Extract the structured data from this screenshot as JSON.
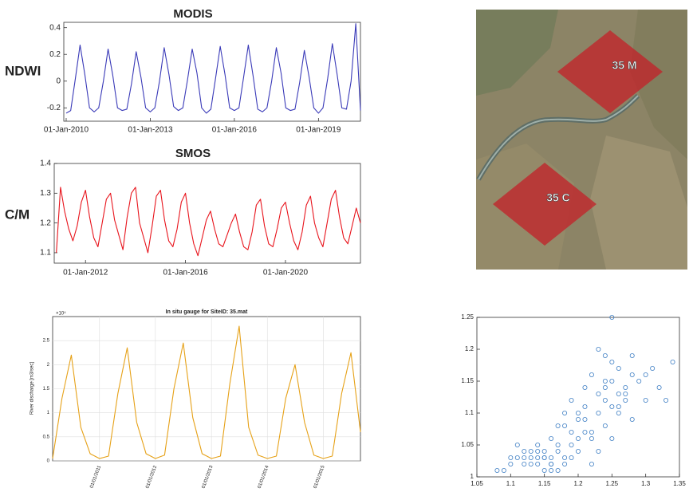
{
  "chart_data": [
    {
      "type": "line",
      "title": "MODIS",
      "ylabel": "NDWI",
      "color": "#3a3ab8",
      "x": [
        "2010-01-01",
        "2010-03-01",
        "2010-05-01",
        "2010-07-01",
        "2010-09-01",
        "2010-11-01",
        "2011-01-01",
        "2011-03-01",
        "2011-05-01",
        "2011-07-01",
        "2011-09-01",
        "2011-11-01",
        "2012-01-01",
        "2012-03-01",
        "2012-05-01",
        "2012-07-01",
        "2012-09-01",
        "2012-11-01",
        "2013-01-01",
        "2013-03-01",
        "2013-05-01",
        "2013-07-01",
        "2013-09-01",
        "2013-11-01",
        "2014-01-01",
        "2014-03-01",
        "2014-05-01",
        "2014-07-01",
        "2014-09-01",
        "2014-11-01",
        "2015-01-01",
        "2015-03-01",
        "2015-05-01",
        "2015-07-01",
        "2015-09-01",
        "2015-11-01",
        "2016-01-01",
        "2016-03-01",
        "2016-05-01",
        "2016-07-01",
        "2016-09-01",
        "2016-11-01",
        "2017-01-01",
        "2017-03-01",
        "2017-05-01",
        "2017-07-01",
        "2017-09-01",
        "2017-11-01",
        "2018-01-01",
        "2018-03-01",
        "2018-05-01",
        "2018-07-01",
        "2018-09-01",
        "2018-11-01",
        "2019-01-01",
        "2019-03-01",
        "2019-05-01",
        "2019-07-01",
        "2019-09-01",
        "2019-11-01",
        "2020-01-01",
        "2020-03-01",
        "2020-05-01",
        "2020-07-01"
      ],
      "values": [
        -0.24,
        -0.22,
        0.02,
        0.27,
        0.05,
        -0.2,
        -0.23,
        -0.2,
        0.0,
        0.24,
        0.04,
        -0.2,
        -0.22,
        -0.21,
        -0.02,
        0.22,
        0.03,
        -0.2,
        -0.23,
        -0.2,
        0.0,
        0.25,
        0.05,
        -0.19,
        -0.22,
        -0.2,
        0.01,
        0.24,
        0.06,
        -0.2,
        -0.24,
        -0.21,
        0.02,
        0.26,
        0.05,
        -0.2,
        -0.22,
        -0.2,
        0.03,
        0.27,
        0.04,
        -0.21,
        -0.23,
        -0.2,
        0.0,
        0.25,
        0.06,
        -0.2,
        -0.22,
        -0.21,
        -0.01,
        0.23,
        0.03,
        -0.2,
        -0.24,
        -0.2,
        0.02,
        0.28,
        0.05,
        -0.2,
        -0.21,
        0.0,
        0.43,
        -0.22
      ],
      "xlim": [
        "2009-12-01",
        "2020-07-01"
      ],
      "ylim": [
        -0.3,
        0.44
      ],
      "xticks": [
        {
          "value": "2010-01-01",
          "label": "01-Jan-2010"
        },
        {
          "value": "2013-01-01",
          "label": "01-Jan-2013"
        },
        {
          "value": "2016-01-01",
          "label": "01-Jan-2016"
        },
        {
          "value": "2019-01-01",
          "label": "01-Jan-2019"
        }
      ],
      "yticks": [
        -0.2,
        0,
        0.2,
        0.4
      ],
      "grid": false
    },
    {
      "type": "line",
      "title": "SMOS",
      "ylabel": "C/M",
      "color": "#e8141c",
      "x": [
        "2010-11-01",
        "2011-01-01",
        "2011-03-01",
        "2011-05-01",
        "2011-07-01",
        "2011-09-01",
        "2011-11-01",
        "2012-01-01",
        "2012-03-01",
        "2012-05-01",
        "2012-07-01",
        "2012-09-01",
        "2012-11-01",
        "2013-01-01",
        "2013-03-01",
        "2013-05-01",
        "2013-07-01",
        "2013-09-01",
        "2013-11-01",
        "2014-01-01",
        "2014-03-01",
        "2014-05-01",
        "2014-07-01",
        "2014-09-01",
        "2014-11-01",
        "2015-01-01",
        "2015-03-01",
        "2015-05-01",
        "2015-07-01",
        "2015-09-01",
        "2015-11-01",
        "2016-01-01",
        "2016-03-01",
        "2016-05-01",
        "2016-07-01",
        "2016-09-01",
        "2016-11-01",
        "2017-01-01",
        "2017-03-01",
        "2017-05-01",
        "2017-07-01",
        "2017-09-01",
        "2017-11-01",
        "2018-01-01",
        "2018-03-01",
        "2018-05-01",
        "2018-07-01",
        "2018-09-01",
        "2018-11-01",
        "2019-01-01",
        "2019-03-01",
        "2019-05-01",
        "2019-07-01",
        "2019-09-01",
        "2019-11-01",
        "2020-01-01",
        "2020-03-01",
        "2020-05-01",
        "2020-07-01",
        "2020-09-01",
        "2020-11-01",
        "2021-01-01",
        "2021-03-01",
        "2021-05-01",
        "2021-07-01",
        "2021-09-01",
        "2021-11-01",
        "2022-01-01",
        "2022-03-01",
        "2022-05-01",
        "2022-07-01",
        "2022-09-01",
        "2022-11-01",
        "2023-01-01"
      ],
      "values": [
        1.1,
        1.32,
        1.24,
        1.18,
        1.14,
        1.19,
        1.27,
        1.31,
        1.22,
        1.15,
        1.12,
        1.2,
        1.28,
        1.3,
        1.21,
        1.16,
        1.11,
        1.22,
        1.3,
        1.32,
        1.2,
        1.15,
        1.1,
        1.19,
        1.29,
        1.31,
        1.21,
        1.14,
        1.12,
        1.18,
        1.27,
        1.3,
        1.2,
        1.13,
        1.09,
        1.15,
        1.21,
        1.24,
        1.18,
        1.13,
        1.12,
        1.16,
        1.2,
        1.23,
        1.17,
        1.12,
        1.11,
        1.17,
        1.26,
        1.28,
        1.19,
        1.13,
        1.12,
        1.18,
        1.25,
        1.27,
        1.2,
        1.14,
        1.11,
        1.17,
        1.26,
        1.29,
        1.2,
        1.15,
        1.12,
        1.2,
        1.28,
        1.31,
        1.22,
        1.15,
        1.13,
        1.19,
        1.25,
        1.2
      ],
      "xlim": [
        "2010-10-01",
        "2023-01-01"
      ],
      "ylim": [
        1.065,
        1.4
      ],
      "xticks": [
        {
          "value": "2012-01-01",
          "label": "01-Jan-2012"
        },
        {
          "value": "2016-01-01",
          "label": "01-Jan-2016"
        },
        {
          "value": "2020-01-01",
          "label": "01-Jan-2020"
        }
      ],
      "yticks": [
        1.1,
        1.2,
        1.3,
        1.4
      ],
      "grid": false
    },
    {
      "type": "line",
      "title": "In situ gauge for SiteID: 35.mat",
      "ylabel": "River discharge [m3/sec]",
      "y_multiplier": "×10⁴",
      "color": "#e6a117",
      "x": [
        "2010-03-01",
        "2010-05-01",
        "2010-07-01",
        "2010-09-01",
        "2010-11-01",
        "2011-01-01",
        "2011-03-01",
        "2011-05-01",
        "2011-07-01",
        "2011-09-01",
        "2011-11-01",
        "2012-01-01",
        "2012-03-01",
        "2012-05-01",
        "2012-07-01",
        "2012-09-01",
        "2012-11-01",
        "2013-01-01",
        "2013-03-01",
        "2013-05-01",
        "2013-07-01",
        "2013-09-01",
        "2013-11-01",
        "2014-01-01",
        "2014-03-01",
        "2014-05-01",
        "2014-07-01",
        "2014-09-01",
        "2014-11-01",
        "2015-01-01",
        "2015-03-01",
        "2015-05-01",
        "2015-07-01",
        "2015-09-01"
      ],
      "values": [
        0.05,
        1.3,
        2.2,
        0.7,
        0.15,
        0.05,
        0.1,
        1.4,
        2.35,
        0.8,
        0.15,
        0.05,
        0.12,
        1.5,
        2.45,
        0.9,
        0.15,
        0.05,
        0.1,
        1.6,
        2.8,
        0.7,
        0.12,
        0.05,
        0.1,
        1.3,
        2.0,
        0.8,
        0.12,
        0.05,
        0.1,
        1.4,
        2.25,
        0.6
      ],
      "xlim": [
        "2010-03-01",
        "2015-09-01"
      ],
      "ylim": [
        0,
        3
      ],
      "xticks": [
        {
          "value": "2011-01-01",
          "label": "01/01/2011"
        },
        {
          "value": "2012-01-01",
          "label": "01/01/2012"
        },
        {
          "value": "2013-01-01",
          "label": "01/01/2013"
        },
        {
          "value": "2014-01-01",
          "label": "01/01/2014"
        },
        {
          "value": "2015-01-01",
          "label": "01/01/2015"
        }
      ],
      "yticks": [
        0,
        0.5,
        1,
        1.5,
        2,
        2.5
      ],
      "grid": true
    },
    {
      "type": "scatter",
      "color": "#3f7fc4",
      "x": [
        1.08,
        1.1,
        1.11,
        1.12,
        1.13,
        1.13,
        1.14,
        1.14,
        1.15,
        1.15,
        1.15,
        1.16,
        1.16,
        1.16,
        1.17,
        1.17,
        1.18,
        1.18,
        1.19,
        1.19,
        1.2,
        1.2,
        1.21,
        1.21,
        1.22,
        1.22,
        1.23,
        1.23,
        1.24,
        1.24,
        1.24,
        1.25,
        1.25,
        1.25,
        1.26,
        1.26,
        1.26,
        1.27,
        1.27,
        1.28,
        1.28,
        1.29,
        1.3,
        1.31,
        1.32,
        1.33,
        1.34,
        1.12,
        1.14,
        1.17,
        1.19,
        1.21,
        1.23,
        1.25,
        1.27,
        1.16,
        1.18,
        1.2,
        1.22,
        1.24,
        1.26,
        1.28,
        1.15,
        1.13,
        1.11,
        1.09,
        1.1,
        1.17,
        1.19,
        1.21,
        1.23,
        1.22,
        1.25,
        1.24,
        1.2,
        1.18,
        1.3,
        1.16,
        1.14,
        1.12
      ],
      "values": [
        1.01,
        1.02,
        1.03,
        1.02,
        1.04,
        1.03,
        1.02,
        1.05,
        1.03,
        1.01,
        1.04,
        1.02,
        1.06,
        1.03,
        1.04,
        1.08,
        1.02,
        1.1,
        1.05,
        1.12,
        1.06,
        1.09,
        1.11,
        1.14,
        1.07,
        1.16,
        1.1,
        1.13,
        1.12,
        1.19,
        1.08,
        1.11,
        1.15,
        1.25,
        1.1,
        1.13,
        1.17,
        1.14,
        1.12,
        1.16,
        1.19,
        1.15,
        1.12,
        1.17,
        1.14,
        1.12,
        1.18,
        1.03,
        1.04,
        1.05,
        1.07,
        1.09,
        1.04,
        1.18,
        1.13,
        1.02,
        1.03,
        1.1,
        1.06,
        1.15,
        1.11,
        1.09,
        1.03,
        1.02,
        1.05,
        1.01,
        1.03,
        1.01,
        1.03,
        1.07,
        1.2,
        1.02,
        1.06,
        1.14,
        1.04,
        1.08,
        1.16,
        1.01,
        1.03,
        1.04
      ],
      "xlim": [
        1.05,
        1.35
      ],
      "ylim": [
        1,
        1.25
      ],
      "xticks": [
        1.05,
        1.1,
        1.15,
        1.2,
        1.25,
        1.3,
        1.35
      ],
      "yticks": [
        1,
        1.05,
        1.1,
        1.15,
        1.2,
        1.25
      ],
      "grid": false
    }
  ],
  "map": {
    "markers": [
      {
        "label": "35 M"
      },
      {
        "label": "35 C"
      }
    ]
  }
}
